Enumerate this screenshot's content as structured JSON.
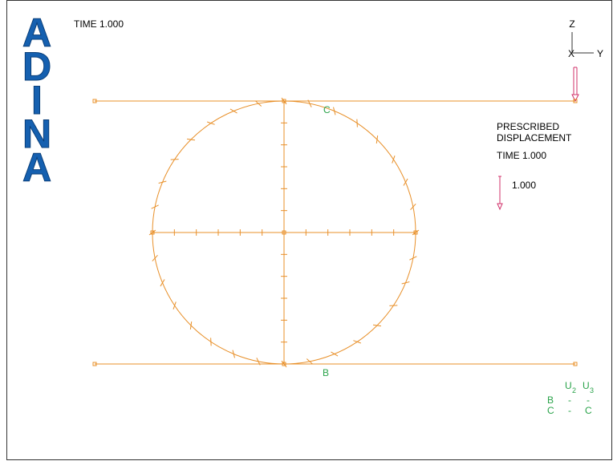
{
  "logo": [
    "A",
    "D",
    "I",
    "N",
    "A"
  ],
  "time_label": "TIME 1.000",
  "triad": {
    "z": "Z",
    "x": "X",
    "y": "Y"
  },
  "load_legend": {
    "line1": "PRESCRIBED",
    "line2": "DISPLACEMENT",
    "time": "TIME 1.000",
    "magnitude": "1.000"
  },
  "labels": {
    "top": "C",
    "bottom": "B"
  },
  "bc_table": {
    "header": [
      {
        "letter": "U",
        "sub": "2"
      },
      {
        "letter": "U",
        "sub": "3"
      }
    ],
    "rows": [
      [
        "B",
        "-",
        "-"
      ],
      [
        "C",
        "-",
        "C"
      ]
    ]
  }
}
